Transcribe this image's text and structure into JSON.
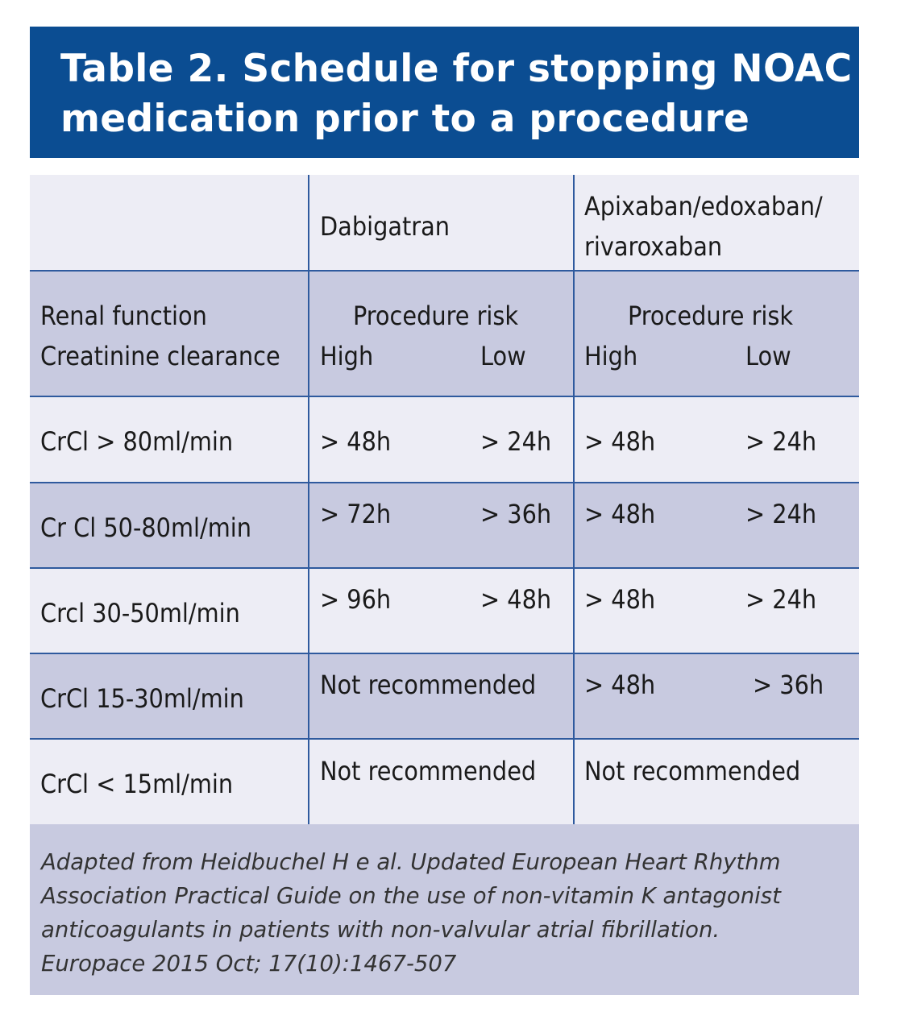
{
  "title": {
    "line1": "Table 2. Schedule for stopping NOAC",
    "line2": "medication prior to a procedure"
  },
  "columns": {
    "dabigatran": "Dabigatran",
    "apixaban_line1": "Apixaban/edoxaban/",
    "apixaban_line2": "rivaroxaban"
  },
  "subheader": {
    "label_line1": "Renal function",
    "label_line2": "Creatinine clearance",
    "risk": "Procedure risk",
    "high": "High",
    "low": "Low"
  },
  "rows": [
    {
      "label": "CrCl > 80ml/min",
      "dab_high": "> 48h",
      "dab_low": "> 24h",
      "api_high": "> 48h",
      "api_low": "> 24h"
    },
    {
      "label": "Cr Cl 50-80ml/min",
      "dab_high": "> 72h",
      "dab_low": "> 36h",
      "api_high": "> 48h",
      "api_low": "> 24h"
    },
    {
      "label": "Crcl 30-50ml/min",
      "dab_high": "> 96h",
      "dab_low": "> 48h",
      "api_high": "> 48h",
      "api_low": "> 24h"
    },
    {
      "label": "CrCl 15-30ml/min",
      "dab": "Not recommended",
      "api_high": "> 48h",
      "api_low": "> 36h"
    },
    {
      "label": "CrCl < 15ml/min",
      "dab": "Not recommended",
      "api": "Not recommended"
    }
  ],
  "footnote": {
    "line1": "Adapted from Heidbuchel H e al. Updated European Heart Rhythm",
    "line2": "Association Practical Guide on the use of non-vitamin K antagonist",
    "line3": "anticoagulants in patients with non-valvular atrial fibrillation.",
    "line4": "Europace 2015 Oct; 17(10):1467-507"
  },
  "colors": {
    "header": "#0b4d92",
    "light_row": "#ededf5",
    "dark_row": "#c8cae0",
    "rule": "#2f5a9e"
  }
}
